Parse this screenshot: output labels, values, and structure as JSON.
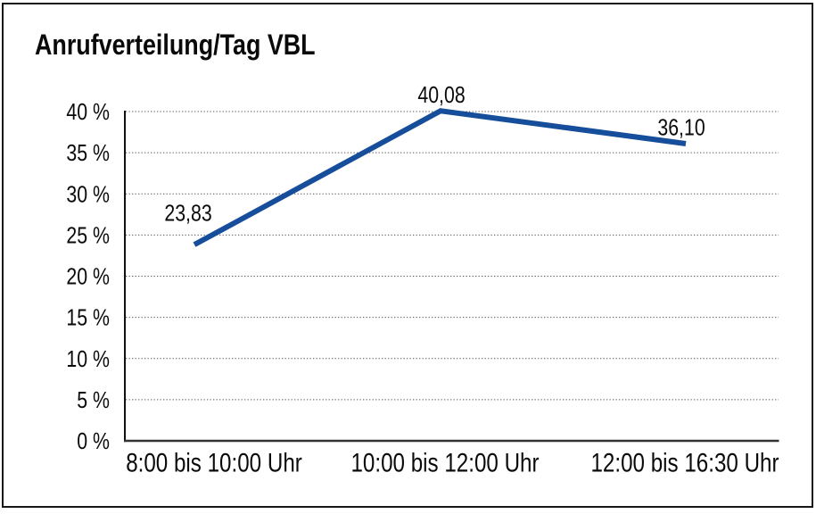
{
  "chart_data": {
    "type": "line",
    "title": "Anrufverteilung/Tag VBL",
    "categories": [
      "8:00 bis 10:00 Uhr",
      "10:00 bis 12:00 Uhr",
      "12:00 bis 16:30 Uhr"
    ],
    "values": [
      23.83,
      40.08,
      36.1
    ],
    "value_labels": [
      "23,83",
      "40,08",
      "36,10"
    ],
    "xlabel": "",
    "ylabel": "",
    "ylim": [
      0,
      40
    ],
    "y_ticks": [
      0,
      5,
      10,
      15,
      20,
      25,
      30,
      35,
      40
    ],
    "y_tick_labels": [
      "0 %",
      "5 %",
      "10 %",
      "15 %",
      "20 %",
      "25 %",
      "30 %",
      "35 %",
      "40 %"
    ],
    "grid": "horizontal-dotted",
    "legend": "none",
    "marker": "none",
    "colors": {
      "line": "#164e9b",
      "grid": "#555555",
      "y_axis": "#111111",
      "x_axis": "#333333",
      "text": "#0a0a0a",
      "frame_border": "#161616"
    }
  }
}
